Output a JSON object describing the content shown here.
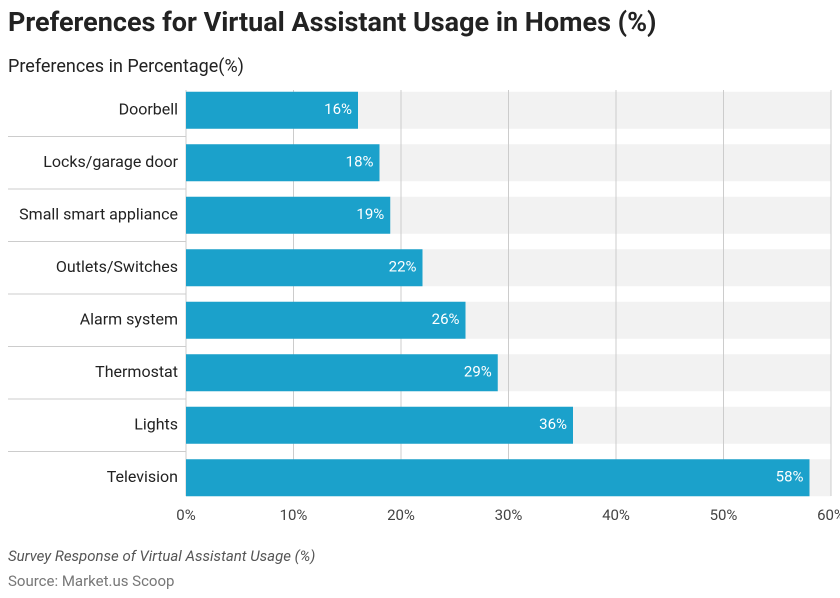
{
  "chart_data": {
    "type": "hbar",
    "title": "Preferences for Virtual Assistant Usage in Homes (%)",
    "subtitle": "Preferences in Percentage(%)",
    "caption": "Survey Response of Virtual Assistant Usage (%)",
    "source": "Source: Market.us Scoop",
    "categories": [
      "Doorbell",
      "Locks/garage door",
      "Small smart appliance",
      "Outlets/Switches",
      "Alarm system",
      "Thermostat",
      "Lights",
      "Television"
    ],
    "values": [
      16,
      18,
      19,
      22,
      26,
      29,
      36,
      58
    ],
    "value_labels": [
      "16%",
      "18%",
      "19%",
      "22%",
      "26%",
      "29%",
      "36%",
      "58%"
    ],
    "color": "#1ba1cb",
    "xlim": [
      0,
      60
    ],
    "xticks": [
      {
        "value": 0,
        "label": "0%"
      },
      {
        "value": 10,
        "label": "10%"
      },
      {
        "value": 20,
        "label": "20%"
      },
      {
        "value": 30,
        "label": "30%"
      },
      {
        "value": 40,
        "label": "40%"
      },
      {
        "value": 50,
        "label": "50%"
      },
      {
        "value": 60,
        "label": "60%"
      }
    ],
    "grid": true
  }
}
